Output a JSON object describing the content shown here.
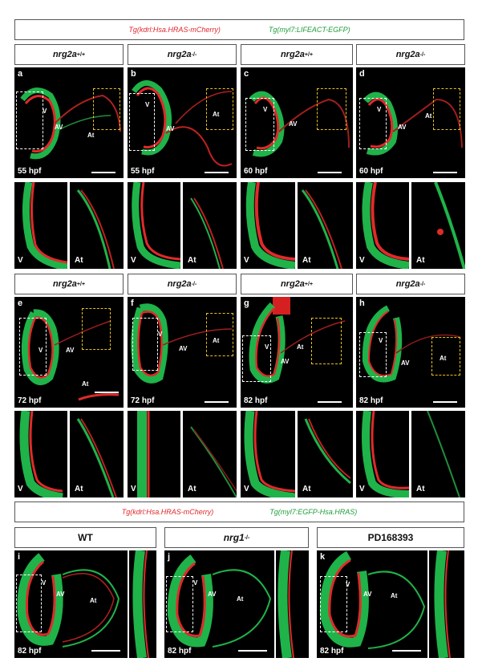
{
  "legend_top": {
    "red": "Tg(kdrl:Hsa.HRAS-mCherry)",
    "green": "Tg(myl7:LIFEACT-EGFP)"
  },
  "legend_bottom": {
    "red": "Tg(kdrl:Hsa.HRAS-mCherry)",
    "green": "Tg(myl7:EGFP-Hsa.HRAS)"
  },
  "genotypes": {
    "wt_base": "nrg2a",
    "wt_sup": "+/+",
    "ko_base": "nrg2a",
    "ko_sup": "-/-"
  },
  "bottom_headers": {
    "wt": "WT",
    "nrg1_base": "nrg1",
    "nrg1_sup": "-/-",
    "pd": "PD168393"
  },
  "panels": {
    "a": {
      "letter": "a",
      "time": "55 hpf"
    },
    "b": {
      "letter": "b",
      "time": "55 hpf"
    },
    "c": {
      "letter": "c",
      "time": "60 hpf"
    },
    "d": {
      "letter": "d",
      "time": "60 hpf"
    },
    "e": {
      "letter": "e",
      "time": "72 hpf"
    },
    "f": {
      "letter": "f",
      "time": "72 hpf"
    },
    "g": {
      "letter": "g",
      "time": "82 hpf"
    },
    "h": {
      "letter": "h",
      "time": "82 hpf"
    },
    "i": {
      "letter": "i",
      "time": "82 hpf"
    },
    "j": {
      "letter": "j",
      "time": "82 hpf"
    },
    "k": {
      "letter": "k",
      "time": "82 hpf"
    }
  },
  "region_labels": {
    "v": "V",
    "at": "At",
    "av": "AV"
  }
}
